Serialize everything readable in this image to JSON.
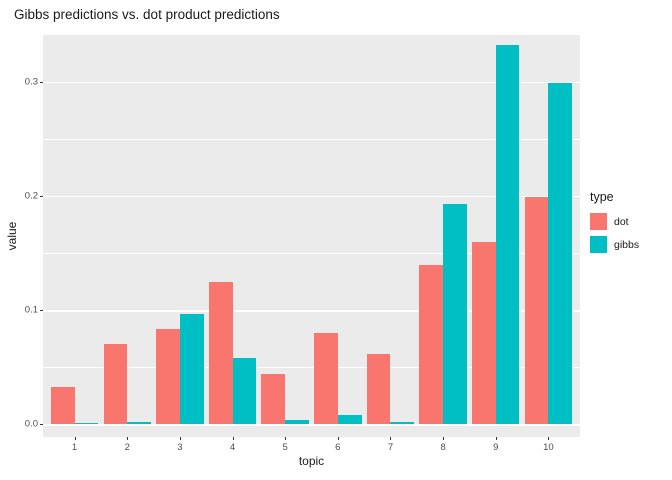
{
  "chart_data": {
    "type": "bar",
    "title": "Gibbs predictions vs. dot product predictions",
    "xlabel": "topic",
    "ylabel": "value",
    "legend_title": "type",
    "legend_position": "right",
    "grid": "on",
    "panel_background": "#EBEBEB",
    "gridline_color": "#FFFFFF",
    "categories": [
      "1",
      "2",
      "3",
      "4",
      "5",
      "6",
      "7",
      "8",
      "9",
      "10"
    ],
    "series": [
      {
        "name": "dot",
        "color": "#F8766D",
        "values": [
          0.033,
          0.07,
          0.084,
          0.125,
          0.044,
          0.08,
          0.062,
          0.14,
          0.16,
          0.199
        ]
      },
      {
        "name": "gibbs",
        "color": "#00BFC4",
        "values": [
          0.001,
          0.002,
          0.097,
          0.058,
          0.004,
          0.008,
          0.002,
          0.193,
          0.332,
          0.299
        ]
      }
    ],
    "y_ticks": [
      0.0,
      0.1,
      0.2,
      0.3
    ],
    "y_tick_labels": [
      "0.0",
      "0.1",
      "0.2",
      "0.3"
    ],
    "y_minor_ticks": [
      0.05,
      0.15,
      0.25
    ],
    "ylim": [
      -0.011,
      0.341
    ]
  }
}
